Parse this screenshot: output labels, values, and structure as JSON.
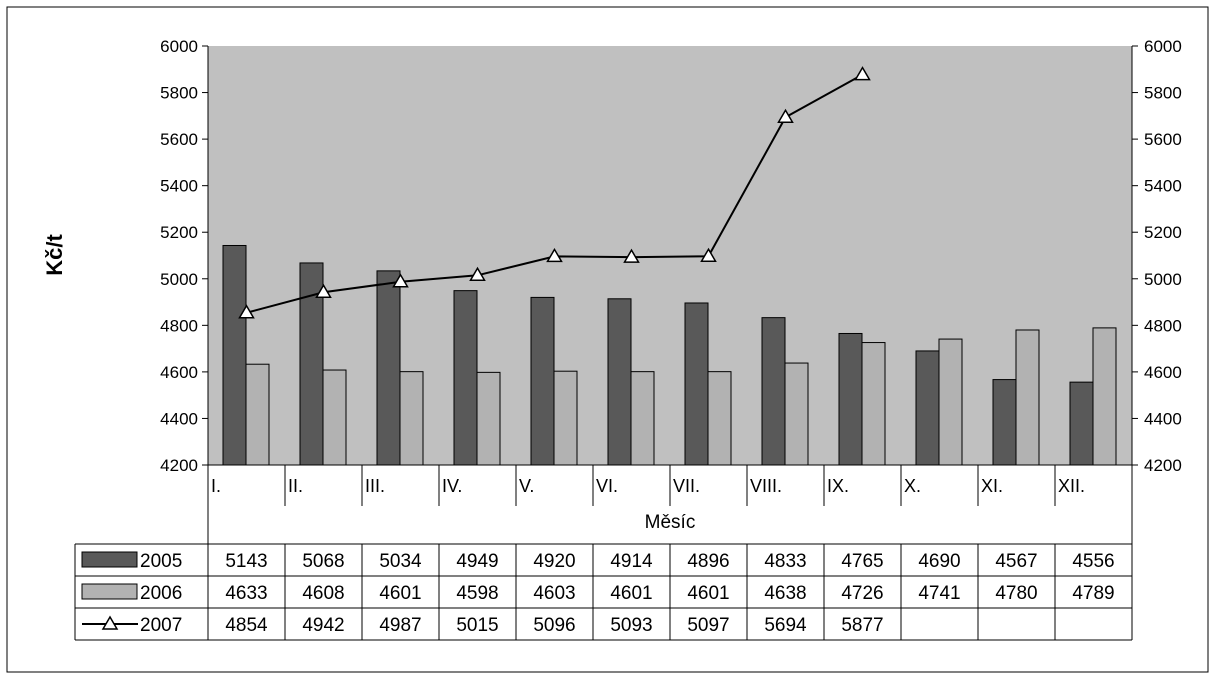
{
  "chart_data": {
    "type": "bar",
    "ylabel": "Kč/t",
    "xlabel": "Měsíc",
    "ylim": [
      4200,
      6000
    ],
    "ytick_step": 200,
    "yticks": [
      "4200",
      "4400",
      "4600",
      "4800",
      "5000",
      "5200",
      "5400",
      "5600",
      "5800",
      "6000"
    ],
    "secondary_axis_ticks": [
      "4200",
      "4400",
      "4600",
      "4800",
      "5000",
      "5200",
      "5400",
      "5600",
      "5800",
      "6000"
    ],
    "categories": [
      "I.",
      "II.",
      "III.",
      "IV.",
      "V.",
      "VI.",
      "VII.",
      "VIII.",
      "IX.",
      "X.",
      "XI.",
      "XII."
    ],
    "series": [
      {
        "name": "2005",
        "kind": "bar",
        "color": "#595959",
        "values": [
          5143,
          5068,
          5034,
          4949,
          4920,
          4914,
          4896,
          4833,
          4765,
          4690,
          4567,
          4556
        ]
      },
      {
        "name": "2006",
        "kind": "bar",
        "color": "#b2b2b2",
        "values": [
          4633,
          4608,
          4601,
          4598,
          4603,
          4601,
          4601,
          4638,
          4726,
          4741,
          4780,
          4789
        ]
      },
      {
        "name": "2007",
        "kind": "line",
        "marker": "triangle",
        "color": "#000000",
        "values": [
          4854,
          4942,
          4987,
          5015,
          5096,
          5093,
          5097,
          5694,
          5877,
          null,
          null,
          null
        ]
      }
    ],
    "plot_background": "#c0c0c0",
    "grid": false,
    "legend": "data-table"
  }
}
